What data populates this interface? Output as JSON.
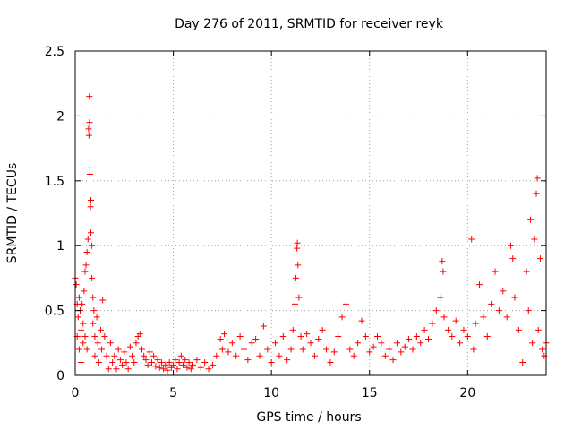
{
  "chart_data": {
    "type": "scatter",
    "title": "Day 276 of 2011, SRMTID for receiver reyk",
    "xlabel": "GPS time / hours",
    "ylabel": "SRMTID / TECUs",
    "xlim": [
      0,
      24
    ],
    "ylim": [
      0,
      2.5
    ],
    "xticks": [
      0,
      5,
      10,
      15,
      20
    ],
    "xtick_labels": [
      "0",
      "5",
      "10",
      "15",
      "20"
    ],
    "yticks": [
      0,
      0.5,
      1,
      1.5,
      2,
      2.5
    ],
    "ytick_labels": [
      "0",
      "0.5",
      "1",
      "1.5",
      "2",
      "2.5"
    ],
    "grid": true,
    "marker": "+",
    "color": "#ff0000",
    "series": [
      {
        "points": [
          [
            0.0,
            0.75
          ],
          [
            0.05,
            0.7
          ],
          [
            0.1,
            0.55
          ],
          [
            0.1,
            0.3
          ],
          [
            0.15,
            0.45
          ],
          [
            0.2,
            0.6
          ],
          [
            0.2,
            0.2
          ],
          [
            0.25,
            0.5
          ],
          [
            0.3,
            0.35
          ],
          [
            0.3,
            0.1
          ],
          [
            0.35,
            0.55
          ],
          [
            0.4,
            0.4
          ],
          [
            0.4,
            0.25
          ],
          [
            0.45,
            0.65
          ],
          [
            0.5,
            0.8
          ],
          [
            0.5,
            0.3
          ],
          [
            0.55,
            0.85
          ],
          [
            0.6,
            0.95
          ],
          [
            0.6,
            0.2
          ],
          [
            0.65,
            1.05
          ],
          [
            0.68,
            1.9
          ],
          [
            0.7,
            1.85
          ],
          [
            0.72,
            2.15
          ],
          [
            0.73,
            1.95
          ],
          [
            0.75,
            1.6
          ],
          [
            0.75,
            1.55
          ],
          [
            0.78,
            1.3
          ],
          [
            0.8,
            1.35
          ],
          [
            0.8,
            1.1
          ],
          [
            0.85,
            1.0
          ],
          [
            0.85,
            0.75
          ],
          [
            0.9,
            0.6
          ],
          [
            0.9,
            0.4
          ],
          [
            0.95,
            0.5
          ],
          [
            1.0,
            0.3
          ],
          [
            1.0,
            0.15
          ],
          [
            1.1,
            0.45
          ],
          [
            1.15,
            0.25
          ],
          [
            1.2,
            0.1
          ],
          [
            1.3,
            0.35
          ],
          [
            1.35,
            0.2
          ],
          [
            1.4,
            0.58
          ],
          [
            1.5,
            0.3
          ],
          [
            1.6,
            0.15
          ],
          [
            1.7,
            0.05
          ],
          [
            1.8,
            0.25
          ],
          [
            1.9,
            0.1
          ],
          [
            2.0,
            0.15
          ],
          [
            2.1,
            0.05
          ],
          [
            2.2,
            0.2
          ],
          [
            2.3,
            0.12
          ],
          [
            2.4,
            0.08
          ],
          [
            2.5,
            0.18
          ],
          [
            2.6,
            0.1
          ],
          [
            2.7,
            0.05
          ],
          [
            2.8,
            0.22
          ],
          [
            2.9,
            0.15
          ],
          [
            3.0,
            0.1
          ],
          [
            3.1,
            0.25
          ],
          [
            3.2,
            0.3
          ],
          [
            3.3,
            0.32
          ],
          [
            3.4,
            0.2
          ],
          [
            3.5,
            0.15
          ],
          [
            3.6,
            0.12
          ],
          [
            3.7,
            0.08
          ],
          [
            3.8,
            0.18
          ],
          [
            3.9,
            0.1
          ],
          [
            4.0,
            0.15
          ],
          [
            4.1,
            0.07
          ],
          [
            4.2,
            0.12
          ],
          [
            4.3,
            0.06
          ],
          [
            4.4,
            0.1
          ],
          [
            4.5,
            0.05
          ],
          [
            4.6,
            0.08
          ],
          [
            4.7,
            0.04
          ],
          [
            4.8,
            0.1
          ],
          [
            4.9,
            0.06
          ],
          [
            5.0,
            0.08
          ],
          [
            5.1,
            0.12
          ],
          [
            5.2,
            0.05
          ],
          [
            5.3,
            0.1
          ],
          [
            5.4,
            0.15
          ],
          [
            5.5,
            0.08
          ],
          [
            5.6,
            0.12
          ],
          [
            5.7,
            0.06
          ],
          [
            5.8,
            0.1
          ],
          [
            5.9,
            0.05
          ],
          [
            6.0,
            0.08
          ],
          [
            6.2,
            0.12
          ],
          [
            6.4,
            0.06
          ],
          [
            6.6,
            0.1
          ],
          [
            6.8,
            0.05
          ],
          [
            7.0,
            0.08
          ],
          [
            7.2,
            0.15
          ],
          [
            7.4,
            0.28
          ],
          [
            7.5,
            0.2
          ],
          [
            7.6,
            0.32
          ],
          [
            7.8,
            0.18
          ],
          [
            8.0,
            0.25
          ],
          [
            8.2,
            0.15
          ],
          [
            8.4,
            0.3
          ],
          [
            8.6,
            0.2
          ],
          [
            8.8,
            0.12
          ],
          [
            9.0,
            0.25
          ],
          [
            9.2,
            0.28
          ],
          [
            9.4,
            0.15
          ],
          [
            9.6,
            0.38
          ],
          [
            9.8,
            0.2
          ],
          [
            10.0,
            0.1
          ],
          [
            10.2,
            0.25
          ],
          [
            10.4,
            0.15
          ],
          [
            10.6,
            0.3
          ],
          [
            10.8,
            0.12
          ],
          [
            11.0,
            0.2
          ],
          [
            11.1,
            0.35
          ],
          [
            11.2,
            0.55
          ],
          [
            11.25,
            0.75
          ],
          [
            11.3,
            0.98
          ],
          [
            11.32,
            1.02
          ],
          [
            11.35,
            0.85
          ],
          [
            11.4,
            0.6
          ],
          [
            11.5,
            0.3
          ],
          [
            11.6,
            0.2
          ],
          [
            11.8,
            0.32
          ],
          [
            12.0,
            0.25
          ],
          [
            12.2,
            0.15
          ],
          [
            12.4,
            0.28
          ],
          [
            12.6,
            0.35
          ],
          [
            12.8,
            0.2
          ],
          [
            13.0,
            0.1
          ],
          [
            13.2,
            0.18
          ],
          [
            13.4,
            0.3
          ],
          [
            13.6,
            0.45
          ],
          [
            13.8,
            0.55
          ],
          [
            14.0,
            0.2
          ],
          [
            14.2,
            0.15
          ],
          [
            14.4,
            0.25
          ],
          [
            14.6,
            0.42
          ],
          [
            14.8,
            0.3
          ],
          [
            15.0,
            0.18
          ],
          [
            15.2,
            0.22
          ],
          [
            15.4,
            0.3
          ],
          [
            15.6,
            0.25
          ],
          [
            15.8,
            0.15
          ],
          [
            16.0,
            0.2
          ],
          [
            16.2,
            0.12
          ],
          [
            16.4,
            0.25
          ],
          [
            16.6,
            0.18
          ],
          [
            16.8,
            0.22
          ],
          [
            17.0,
            0.28
          ],
          [
            17.2,
            0.2
          ],
          [
            17.4,
            0.3
          ],
          [
            17.6,
            0.25
          ],
          [
            17.8,
            0.35
          ],
          [
            18.0,
            0.28
          ],
          [
            18.2,
            0.4
          ],
          [
            18.4,
            0.5
          ],
          [
            18.6,
            0.6
          ],
          [
            18.7,
            0.88
          ],
          [
            18.75,
            0.8
          ],
          [
            18.8,
            0.45
          ],
          [
            19.0,
            0.35
          ],
          [
            19.2,
            0.3
          ],
          [
            19.4,
            0.42
          ],
          [
            19.6,
            0.25
          ],
          [
            19.8,
            0.35
          ],
          [
            20.0,
            0.3
          ],
          [
            20.2,
            1.05
          ],
          [
            20.3,
            0.2
          ],
          [
            20.4,
            0.4
          ],
          [
            20.6,
            0.7
          ],
          [
            20.8,
            0.45
          ],
          [
            21.0,
            0.3
          ],
          [
            21.2,
            0.55
          ],
          [
            21.4,
            0.8
          ],
          [
            21.6,
            0.5
          ],
          [
            21.8,
            0.65
          ],
          [
            22.0,
            0.45
          ],
          [
            22.2,
            1.0
          ],
          [
            22.3,
            0.9
          ],
          [
            22.4,
            0.6
          ],
          [
            22.6,
            0.35
          ],
          [
            22.8,
            0.1
          ],
          [
            23.0,
            0.8
          ],
          [
            23.1,
            0.5
          ],
          [
            23.2,
            1.2
          ],
          [
            23.3,
            0.25
          ],
          [
            23.4,
            1.05
          ],
          [
            23.5,
            1.4
          ],
          [
            23.55,
            1.52
          ],
          [
            23.6,
            0.35
          ],
          [
            23.7,
            0.9
          ],
          [
            23.8,
            0.2
          ],
          [
            23.9,
            0.15
          ],
          [
            24.0,
            0.25
          ]
        ]
      }
    ]
  }
}
